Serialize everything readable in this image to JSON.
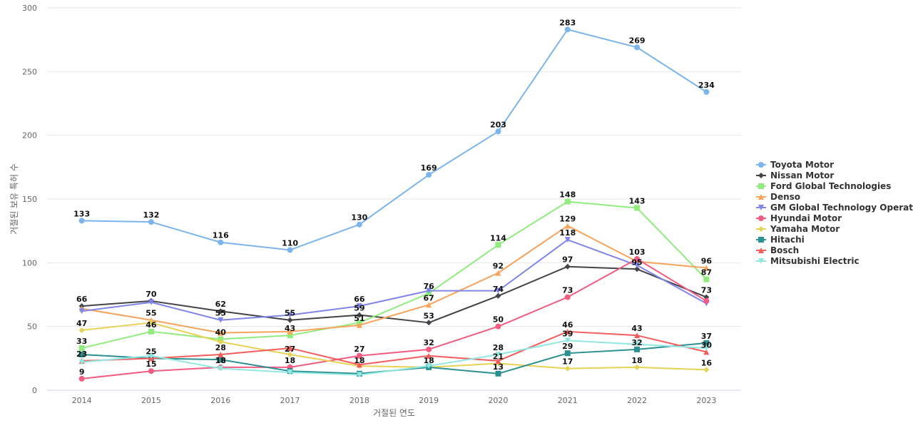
{
  "chart_data": {
    "type": "line",
    "xlabel": "거절된 연도",
    "ylabel": "거절된 보유 특허 수",
    "x": [
      "2014",
      "2015",
      "2016",
      "2017",
      "2018",
      "2019",
      "2020",
      "2021",
      "2022",
      "2023"
    ],
    "ylim": [
      0,
      300
    ],
    "yticks": [
      0,
      50,
      100,
      150,
      200,
      250,
      300
    ],
    "grid": true,
    "legend_position": "right",
    "series": [
      {
        "name": "Toyota Motor",
        "color": "#7cb5ec",
        "marker": "circle",
        "values": [
          133,
          132,
          116,
          110,
          130,
          169,
          203,
          283,
          269,
          234
        ]
      },
      {
        "name": "Nissan Motor",
        "color": "#434348",
        "marker": "diamond",
        "values": [
          66,
          70,
          62,
          55,
          59,
          53,
          74,
          97,
          95,
          73
        ]
      },
      {
        "name": "Ford Global Technologies",
        "color": "#90ed7d",
        "marker": "square",
        "values": [
          33,
          46,
          40,
          43,
          53,
          76,
          114,
          148,
          143,
          87
        ]
      },
      {
        "name": "Denso",
        "color": "#f7a35c",
        "marker": "triangle",
        "values": [
          64,
          55,
          45,
          46,
          51,
          67,
          92,
          129,
          101,
          96
        ]
      },
      {
        "name": "GM Global Technology Operat...",
        "color": "#8085e9",
        "marker": "triangle-down",
        "values": [
          62,
          69,
          55,
          59,
          66,
          78,
          78,
          118,
          98,
          68
        ]
      },
      {
        "name": "Hyundai Motor",
        "color": "#f15c80",
        "marker": "circle",
        "values": [
          9,
          15,
          18,
          18,
          27,
          32,
          50,
          73,
          103,
          70
        ]
      },
      {
        "name": "Yamaha Motor",
        "color": "#e4d354",
        "marker": "diamond",
        "values": [
          47,
          53,
          38,
          28,
          19,
          18,
          21,
          17,
          18,
          16
        ]
      },
      {
        "name": "Hitachi",
        "color": "#2b908f",
        "marker": "square",
        "values": [
          28,
          25,
          24,
          15,
          13,
          18,
          13,
          29,
          32,
          37
        ]
      },
      {
        "name": "Bosch",
        "color": "#f45b5b",
        "marker": "triangle",
        "values": [
          23,
          25,
          28,
          33,
          20,
          27,
          23,
          46,
          43,
          30
        ]
      },
      {
        "name": "Mitsubishi Electric",
        "color": "#91e8e1",
        "marker": "triangle-down",
        "values": [
          22,
          27,
          17,
          14,
          12,
          19,
          28,
          39,
          36,
          33
        ]
      }
    ],
    "data_labels": [
      {
        "x": "2014",
        "y": 133,
        "text": "133"
      },
      {
        "x": "2015",
        "y": 132,
        "text": "132"
      },
      {
        "x": "2016",
        "y": 116,
        "text": "116"
      },
      {
        "x": "2017",
        "y": 110,
        "text": "110"
      },
      {
        "x": "2018",
        "y": 130,
        "text": "130"
      },
      {
        "x": "2019",
        "y": 169,
        "text": "169"
      },
      {
        "x": "2020",
        "y": 203,
        "text": "203"
      },
      {
        "x": "2021",
        "y": 283,
        "text": "283"
      },
      {
        "x": "2022",
        "y": 269,
        "text": "269"
      },
      {
        "x": "2023",
        "y": 234,
        "text": "234"
      },
      {
        "x": "2014",
        "y": 66,
        "text": "66"
      },
      {
        "x": "2015",
        "y": 70,
        "text": "70"
      },
      {
        "x": "2016",
        "y": 62,
        "text": "62"
      },
      {
        "x": "2017",
        "y": 55,
        "text": "55"
      },
      {
        "x": "2018",
        "y": 66,
        "text": "66"
      },
      {
        "x": "2018",
        "y": 59,
        "text": "59"
      },
      {
        "x": "2019",
        "y": 76,
        "text": "76"
      },
      {
        "x": "2020",
        "y": 114,
        "text": "114"
      },
      {
        "x": "2021",
        "y": 148,
        "text": "148"
      },
      {
        "x": "2022",
        "y": 143,
        "text": "143"
      },
      {
        "x": "2021",
        "y": 129,
        "text": "129"
      },
      {
        "x": "2021",
        "y": 118,
        "text": "118"
      },
      {
        "x": "2019",
        "y": 67,
        "text": "67"
      },
      {
        "x": "2020",
        "y": 92,
        "text": "92"
      },
      {
        "x": "2022",
        "y": 103,
        "text": "103"
      },
      {
        "x": "2021",
        "y": 97,
        "text": "97"
      },
      {
        "x": "2022",
        "y": 95,
        "text": "95"
      },
      {
        "x": "2023",
        "y": 96,
        "text": "96"
      },
      {
        "x": "2023",
        "y": 87,
        "text": "87"
      },
      {
        "x": "2023",
        "y": 73,
        "text": "73"
      },
      {
        "x": "2020",
        "y": 74,
        "text": "74"
      },
      {
        "x": "2019",
        "y": 53,
        "text": "53"
      },
      {
        "x": "2015",
        "y": 55,
        "text": "55"
      },
      {
        "x": "2016",
        "y": 55,
        "text": "55"
      },
      {
        "x": "2017",
        "y": 43,
        "text": "43"
      },
      {
        "x": "2018",
        "y": 51,
        "text": "51"
      },
      {
        "x": "2014",
        "y": 47,
        "text": "47"
      },
      {
        "x": "2015",
        "y": 46,
        "text": "46"
      },
      {
        "x": "2016",
        "y": 40,
        "text": "40"
      },
      {
        "x": "2014",
        "y": 33,
        "text": "33"
      },
      {
        "x": "2021",
        "y": 73,
        "text": "73"
      },
      {
        "x": "2020",
        "y": 50,
        "text": "50"
      },
      {
        "x": "2019",
        "y": 32,
        "text": "32"
      },
      {
        "x": "2018",
        "y": 27,
        "text": "27"
      },
      {
        "x": "2017",
        "y": 27,
        "text": "27"
      },
      {
        "x": "2016",
        "y": 28,
        "text": "28"
      },
      {
        "x": "2015",
        "y": 25,
        "text": "25"
      },
      {
        "x": "2014",
        "y": 23,
        "text": "23"
      },
      {
        "x": "2015",
        "y": 15,
        "text": "15"
      },
      {
        "x": "2014",
        "y": 9,
        "text": "9"
      },
      {
        "x": "2016",
        "y": 18,
        "text": "18"
      },
      {
        "x": "2016",
        "y": 18,
        "text": "18"
      },
      {
        "x": "2017",
        "y": 18,
        "text": "18"
      },
      {
        "x": "2018",
        "y": 18,
        "text": "18"
      },
      {
        "x": "2019",
        "y": 18,
        "text": "18"
      },
      {
        "x": "2020",
        "y": 28,
        "text": "28"
      },
      {
        "x": "2020",
        "y": 21,
        "text": "21"
      },
      {
        "x": "2020",
        "y": 13,
        "text": "13"
      },
      {
        "x": "2021",
        "y": 46,
        "text": "46"
      },
      {
        "x": "2021",
        "y": 39,
        "text": "39"
      },
      {
        "x": "2021",
        "y": 29,
        "text": "29"
      },
      {
        "x": "2021",
        "y": 17,
        "text": "17"
      },
      {
        "x": "2022",
        "y": 43,
        "text": "43"
      },
      {
        "x": "2022",
        "y": 32,
        "text": "32"
      },
      {
        "x": "2022",
        "y": 18,
        "text": "18"
      },
      {
        "x": "2023",
        "y": 37,
        "text": "37"
      },
      {
        "x": "2023",
        "y": 30,
        "text": "30"
      },
      {
        "x": "2023",
        "y": 16,
        "text": "16"
      }
    ]
  }
}
